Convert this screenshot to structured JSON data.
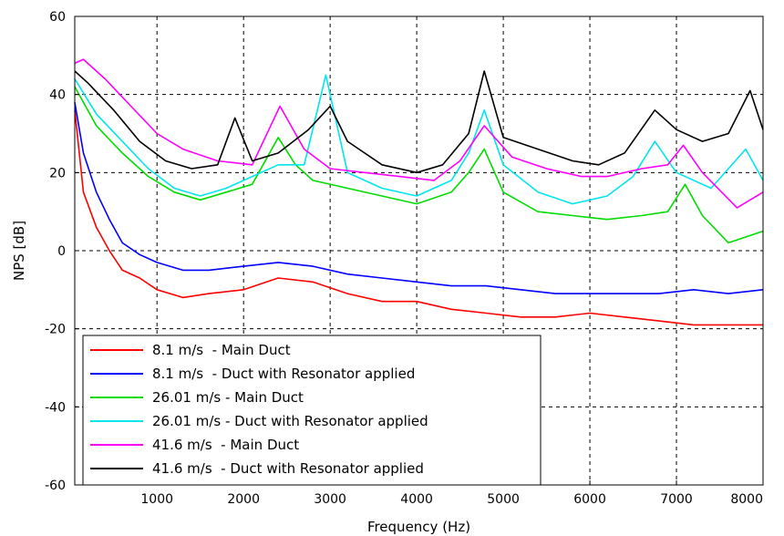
{
  "chart_data": {
    "type": "line",
    "title": "",
    "xlabel": "Frequency (Hz)",
    "ylabel": "NPS [dB]",
    "xlim": [
      50,
      8000
    ],
    "ylim": [
      -60,
      60
    ],
    "grid": true,
    "legend_position": "bottom-left",
    "x_ticks": [
      1000,
      2000,
      3000,
      4000,
      5000,
      6000,
      7000,
      8000
    ],
    "y_ticks": [
      -60,
      -40,
      -20,
      0,
      20,
      40,
      60
    ],
    "series": [
      {
        "name": "8.1 m/s  - Main Duct",
        "color": "#ff0000",
        "x": [
          50,
          150,
          300,
          450,
          600,
          800,
          1000,
          1300,
          1600,
          2000,
          2400,
          2800,
          3200,
          3600,
          4000,
          4400,
          4800,
          5200,
          5600,
          6000,
          6400,
          6800,
          7200,
          7600,
          8000
        ],
        "y": [
          36,
          15,
          6,
          0,
          -5,
          -7,
          -10,
          -12,
          -11,
          -10,
          -7,
          -8,
          -11,
          -13,
          -13,
          -15,
          -16,
          -17,
          -17,
          -16,
          -17,
          -18,
          -19,
          -19,
          -19
        ]
      },
      {
        "name": "8.1 m/s  - Duct with Resonator applied",
        "color": "#0000ff",
        "x": [
          50,
          150,
          300,
          450,
          600,
          800,
          1000,
          1300,
          1600,
          2000,
          2400,
          2800,
          3200,
          3600,
          4000,
          4400,
          4800,
          5200,
          5600,
          6000,
          6400,
          6800,
          7200,
          7600,
          8000
        ],
        "y": [
          38,
          25,
          15,
          8,
          2,
          -1,
          -3,
          -5,
          -5,
          -4,
          -3,
          -4,
          -6,
          -7,
          -8,
          -9,
          -9,
          -10,
          -11,
          -11,
          -11,
          -11,
          -10,
          -11,
          -10
        ]
      },
      {
        "name": "26.01 m/s - Main Duct",
        "color": "#00dd00",
        "x": [
          50,
          300,
          600,
          900,
          1200,
          1500,
          1800,
          2100,
          2400,
          2600,
          2800,
          3200,
          3600,
          4000,
          4400,
          4600,
          4780,
          5000,
          5400,
          5800,
          6200,
          6600,
          6900,
          7100,
          7300,
          7600,
          8000
        ],
        "y": [
          42,
          32,
          25,
          19,
          15,
          13,
          15,
          17,
          29,
          22,
          18,
          16,
          14,
          12,
          15,
          20,
          26,
          15,
          10,
          9,
          8,
          9,
          10,
          17,
          9,
          2,
          5
        ]
      },
      {
        "name": "26.01 m/s - Duct with Resonator applied",
        "color": "#00e5ee",
        "x": [
          50,
          300,
          600,
          900,
          1200,
          1500,
          1800,
          2100,
          2400,
          2700,
          2950,
          3200,
          3600,
          4000,
          4400,
          4600,
          4780,
          5000,
          5400,
          5800,
          6200,
          6500,
          6750,
          7000,
          7400,
          7800,
          8000
        ],
        "y": [
          44,
          35,
          28,
          21,
          16,
          14,
          16,
          19,
          22,
          22,
          45,
          20,
          16,
          14,
          18,
          25,
          36,
          22,
          15,
          12,
          14,
          19,
          28,
          20,
          16,
          26,
          18
        ]
      },
      {
        "name": "41.6 m/s  - Main Duct",
        "color": "#ff00ff",
        "x": [
          50,
          150,
          400,
          700,
          1000,
          1300,
          1700,
          2100,
          2420,
          2700,
          3000,
          3400,
          3800,
          4200,
          4500,
          4780,
          5100,
          5500,
          5900,
          6200,
          6600,
          6900,
          7080,
          7300,
          7700,
          8000
        ],
        "y": [
          48,
          49,
          44,
          37,
          30,
          26,
          23,
          22,
          37,
          26,
          21,
          20,
          19,
          18,
          23,
          32,
          24,
          21,
          19,
          19,
          21,
          22,
          27,
          20,
          11,
          15
        ]
      },
      {
        "name": "41.6 m/s  - Duct with Resonator applied",
        "color": "#000000",
        "x": [
          50,
          200,
          500,
          800,
          1100,
          1400,
          1700,
          1900,
          2100,
          2400,
          2750,
          3000,
          3200,
          3600,
          4000,
          4300,
          4600,
          4780,
          5000,
          5400,
          5800,
          6100,
          6400,
          6750,
          7000,
          7300,
          7600,
          7850,
          8000
        ],
        "y": [
          46,
          43,
          36,
          28,
          23,
          21,
          22,
          34,
          23,
          25,
          31,
          37,
          28,
          22,
          20,
          22,
          30,
          46,
          29,
          26,
          23,
          22,
          25,
          36,
          31,
          28,
          30,
          41,
          31
        ]
      }
    ]
  }
}
